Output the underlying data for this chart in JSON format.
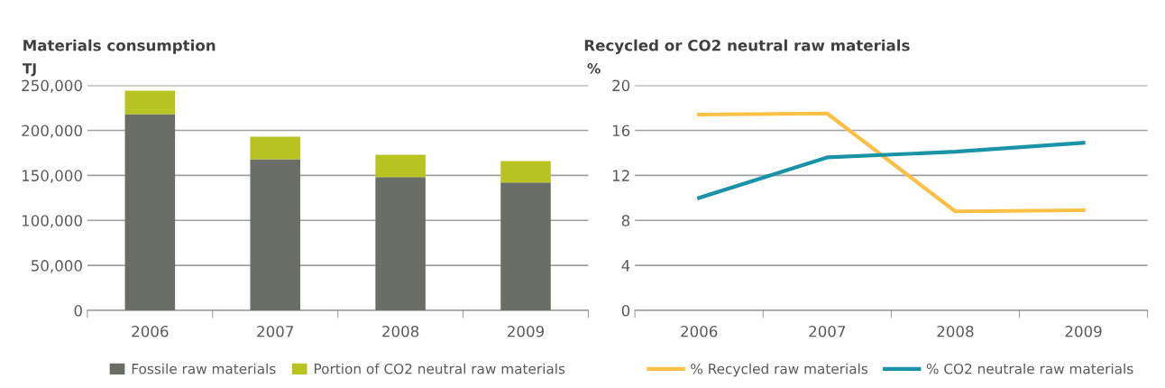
{
  "chart_data": [
    {
      "type": "bar",
      "title": "Materials consumption",
      "ylabel": "TJ",
      "stacked": true,
      "categories": [
        "2006",
        "2007",
        "2008",
        "2009"
      ],
      "series": [
        {
          "name": "Fossile raw materials",
          "color": "#6a6e67",
          "values": [
            218000,
            168000,
            148000,
            142000
          ]
        },
        {
          "name": "Portion of CO2 neutral raw materials",
          "color": "#b8c422",
          "values": [
            26000,
            25000,
            25000,
            24000
          ]
        }
      ],
      "ylim": [
        0,
        250000
      ],
      "yticks": [
        {
          "value": 0,
          "label": "0"
        },
        {
          "value": 50000,
          "label": "50,000"
        },
        {
          "value": 100000,
          "label": "100,000"
        },
        {
          "value": 150000,
          "label": "150,000"
        },
        {
          "value": 200000,
          "label": "200,000"
        },
        {
          "value": 250000,
          "label": "250,000"
        }
      ],
      "grid": "y",
      "legend": "bottom"
    },
    {
      "type": "line",
      "title": "Recycled or CO2 neutral raw materials",
      "ylabel": "%",
      "categories": [
        "2006",
        "2007",
        "2008",
        "2009"
      ],
      "series": [
        {
          "name": "% Recycled raw materials",
          "color": "#fcc046",
          "values": [
            17.4,
            17.5,
            8.8,
            8.9
          ]
        },
        {
          "name": "% CO2 neutrale raw materials",
          "color": "#1a93a7",
          "values": [
            10.0,
            13.6,
            14.1,
            14.9
          ]
        }
      ],
      "ylim": [
        0,
        20
      ],
      "yticks": [
        0,
        4,
        8,
        12,
        16,
        20
      ],
      "grid": "y",
      "legend": "bottom",
      "marker": "none",
      "line_style": "solid"
    }
  ]
}
